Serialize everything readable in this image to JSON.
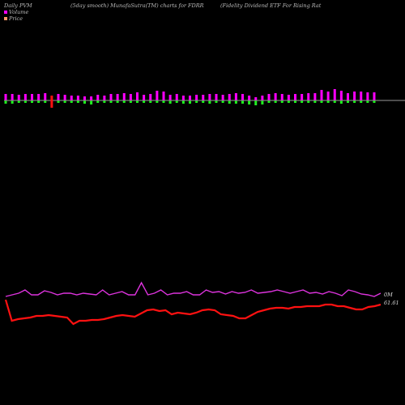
{
  "header": {
    "left": "Daily PVM",
    "middle": "(5day smooth) MunafaSutra(TM) charts for FDRR",
    "right": "(Fidelity Dividend ETF For Rising Rat"
  },
  "legend": {
    "volume_label": "Volume",
    "price_label": "Price",
    "volume_color": "#ff00ff",
    "price_color": "#ff9966"
  },
  "labels": {
    "volume_last": "0M",
    "price_last": "61.61"
  },
  "colors": {
    "background": "#000000",
    "up_bar": "#ff00ff",
    "down_bar": "#22ee22",
    "red_bar": "#ff1111",
    "volume_line": "#dd33dd",
    "price_line": "#ff1111",
    "baseline": "#cccccc"
  },
  "chart_data": {
    "type": "line",
    "bars": {
      "up": [
        8,
        8,
        7,
        8,
        8,
        8,
        9,
        6,
        8,
        7,
        6,
        6,
        5,
        5,
        7,
        6,
        8,
        8,
        9,
        8,
        10,
        7,
        8,
        12,
        11,
        7,
        8,
        6,
        6,
        7,
        7,
        8,
        8,
        7,
        8,
        9,
        8,
        6,
        4,
        6,
        8,
        9,
        8,
        7,
        8,
        8,
        9,
        9,
        13,
        11,
        14,
        12,
        9,
        11,
        11,
        10,
        10
      ],
      "down": [
        4,
        4,
        3,
        3,
        3,
        3,
        3,
        9,
        3,
        3,
        3,
        3,
        4,
        5,
        3,
        3,
        3,
        3,
        3,
        3,
        3,
        3,
        3,
        3,
        3,
        4,
        3,
        4,
        4,
        3,
        3,
        4,
        3,
        3,
        4,
        4,
        4,
        5,
        6,
        5,
        3,
        3,
        3,
        3,
        3,
        3,
        3,
        3,
        3,
        3,
        3,
        4,
        3,
        3,
        3,
        3,
        3
      ],
      "red_index": 7
    },
    "volume_line": [
      66,
      64,
      62,
      58,
      64,
      64,
      59,
      61,
      64,
      62,
      62,
      64,
      62,
      63,
      64,
      58,
      64,
      62,
      60,
      64,
      64,
      49,
      64,
      62,
      58,
      64,
      62,
      62,
      60,
      64,
      64,
      58,
      61,
      60,
      63,
      60,
      62,
      61,
      58,
      62,
      61,
      60,
      58,
      60,
      62,
      60,
      58,
      62,
      61,
      63,
      60,
      62,
      65,
      58,
      60,
      63,
      64,
      66,
      62
    ],
    "price_line": [
      370,
      396,
      394,
      393,
      392,
      390,
      390,
      389,
      390,
      391,
      392,
      400,
      396,
      396,
      395,
      395,
      394,
      392,
      390,
      389,
      390,
      391,
      387,
      383,
      382,
      384,
      383,
      388,
      386,
      387,
      388,
      386,
      383,
      382,
      383,
      388,
      389,
      390,
      393,
      393,
      389,
      385,
      383,
      381,
      380,
      380,
      381,
      379,
      379,
      378,
      378,
      378,
      376,
      376,
      378,
      378,
      380,
      382,
      382,
      379,
      378,
      376
    ],
    "price_dates": [],
    "ylim": [
      0,
      500
    ]
  }
}
